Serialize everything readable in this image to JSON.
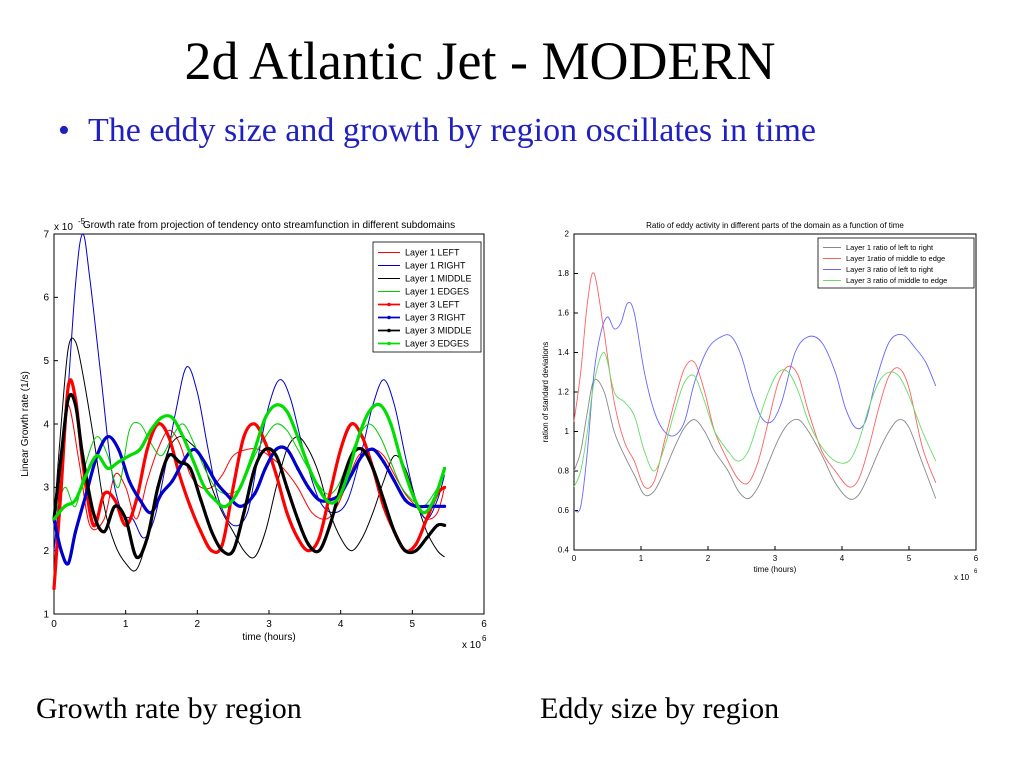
{
  "slide": {
    "title": "2d Atlantic Jet - MODERN",
    "bullet": "The eddy size and growth by region oscillates in time",
    "caption_left": "Growth rate by region",
    "caption_right": "Eddy size by region"
  },
  "chart_data": [
    {
      "type": "line",
      "title": "Growth rate from projection of tendency onto streamfunction in different subdomains",
      "xlabel": "time (hours)",
      "ylabel": "Linear Growth rate (1/s)",
      "x_multiplier": "x 10^6",
      "y_multiplier": "x 10^-5",
      "xlim": [
        0,
        6
      ],
      "ylim": [
        1,
        7
      ],
      "xticks": [
        0,
        1,
        2,
        3,
        4,
        5,
        6
      ],
      "yticks": [
        1,
        2,
        3,
        4,
        5,
        6,
        7
      ],
      "legend_position": "top-right",
      "series": [
        {
          "name": "Layer 1 LEFT",
          "color": "#ff0000",
          "marker": false,
          "x": [
            0,
            0.1,
            0.2,
            0.35,
            0.5,
            0.7,
            0.85,
            1.0,
            1.15,
            1.3,
            1.45,
            1.6,
            1.75,
            1.9,
            2.05,
            2.2,
            2.35,
            2.5,
            2.7,
            2.85,
            3.0,
            3.2,
            3.4,
            3.6,
            3.8,
            3.95,
            4.1,
            4.25,
            4.45,
            4.6,
            4.75,
            4.9,
            5.05,
            5.2,
            5.35,
            5.45
          ],
          "y": [
            1.5,
            3.5,
            4.3,
            3.4,
            2.4,
            2.5,
            3.2,
            3.0,
            2.5,
            3.1,
            3.6,
            3.9,
            3.7,
            3.2,
            3.0,
            3.0,
            3.2,
            3.5,
            3.6,
            3.6,
            3.5,
            3.3,
            3.0,
            2.6,
            2.5,
            2.7,
            3.1,
            3.5,
            3.6,
            3.5,
            3.2,
            2.9,
            2.7,
            2.5,
            2.6,
            3.0
          ]
        },
        {
          "name": "Layer 1 RIGHT",
          "color": "#0000cc",
          "marker": false,
          "x": [
            0,
            0.15,
            0.3,
            0.4,
            0.5,
            0.65,
            0.8,
            0.95,
            1.1,
            1.25,
            1.4,
            1.55,
            1.7,
            1.85,
            2.0,
            2.15,
            2.3,
            2.5,
            2.7,
            2.85,
            3.0,
            3.15,
            3.3,
            3.5,
            3.7,
            3.9,
            4.1,
            4.3,
            4.45,
            4.6,
            4.75,
            4.9,
            5.05,
            5.2,
            5.35,
            5.45
          ],
          "y": [
            2.0,
            3.8,
            6.2,
            7.0,
            6.3,
            4.8,
            3.3,
            2.6,
            2.5,
            2.2,
            2.5,
            3.3,
            4.2,
            4.9,
            4.5,
            3.6,
            2.8,
            2.4,
            2.6,
            3.5,
            4.3,
            4.7,
            4.4,
            3.5,
            2.8,
            2.6,
            2.8,
            3.6,
            4.3,
            4.7,
            4.3,
            3.5,
            2.8,
            2.5,
            2.8,
            3.2
          ]
        },
        {
          "name": "Layer 1 MIDDLE",
          "color": "#000000",
          "marker": false,
          "x": [
            0,
            0.1,
            0.2,
            0.3,
            0.4,
            0.55,
            0.7,
            0.85,
            1.0,
            1.15,
            1.3,
            1.45,
            1.6,
            1.75,
            1.9,
            2.05,
            2.2,
            2.35,
            2.5,
            2.65,
            2.8,
            2.95,
            3.1,
            3.25,
            3.4,
            3.55,
            3.7,
            3.85,
            4.0,
            4.15,
            4.3,
            4.45,
            4.6,
            4.75,
            4.9,
            5.05,
            5.2,
            5.35,
            5.45
          ],
          "y": [
            2.5,
            4.0,
            5.2,
            5.3,
            4.8,
            3.8,
            2.7,
            2.1,
            1.8,
            1.7,
            2.2,
            3.0,
            3.6,
            3.8,
            3.7,
            3.5,
            3.0,
            2.6,
            2.3,
            2.0,
            1.9,
            2.3,
            3.0,
            3.6,
            3.8,
            3.6,
            3.2,
            2.6,
            2.2,
            2.0,
            2.2,
            2.6,
            3.1,
            3.5,
            3.3,
            2.8,
            2.3,
            2.0,
            1.9
          ]
        },
        {
          "name": "Layer 1 EDGES",
          "color": "#00cc00",
          "marker": false,
          "x": [
            0,
            0.15,
            0.3,
            0.45,
            0.6,
            0.75,
            0.9,
            1.05,
            1.2,
            1.35,
            1.5,
            1.65,
            1.8,
            1.95,
            2.1,
            2.25,
            2.4,
            2.6,
            2.8,
            2.95,
            3.1,
            3.25,
            3.4,
            3.6,
            3.8,
            3.95,
            4.1,
            4.25,
            4.4,
            4.55,
            4.7,
            4.85,
            5.0,
            5.15,
            5.3,
            5.45
          ],
          "y": [
            2.5,
            3.0,
            2.7,
            3.4,
            3.8,
            3.5,
            3.0,
            3.9,
            4.0,
            3.7,
            3.5,
            3.8,
            4.0,
            3.7,
            3.3,
            3.0,
            2.9,
            3.0,
            3.5,
            3.8,
            4.0,
            3.9,
            3.6,
            3.2,
            2.9,
            3.0,
            3.4,
            3.8,
            4.0,
            3.8,
            3.4,
            3.0,
            2.8,
            2.7,
            2.9,
            3.2
          ]
        },
        {
          "name": "Layer 3 LEFT",
          "color": "#ff0000",
          "marker": true,
          "x": [
            0,
            0.1,
            0.2,
            0.3,
            0.4,
            0.55,
            0.7,
            0.85,
            1.0,
            1.15,
            1.3,
            1.45,
            1.6,
            1.75,
            1.9,
            2.05,
            2.2,
            2.35,
            2.5,
            2.65,
            2.8,
            2.95,
            3.1,
            3.25,
            3.4,
            3.55,
            3.7,
            3.85,
            4.0,
            4.15,
            4.3,
            4.45,
            4.6,
            4.75,
            4.9,
            5.05,
            5.2,
            5.35,
            5.45
          ],
          "y": [
            1.4,
            3.0,
            4.6,
            4.4,
            3.4,
            2.4,
            2.9,
            2.8,
            2.4,
            2.8,
            3.6,
            4.0,
            3.8,
            3.2,
            2.7,
            2.3,
            2.0,
            2.1,
            3.0,
            3.8,
            4.0,
            3.7,
            3.2,
            2.6,
            2.2,
            2.0,
            2.2,
            2.9,
            3.6,
            4.0,
            3.8,
            3.3,
            2.7,
            2.3,
            2.0,
            2.1,
            2.5,
            2.9,
            3.0
          ]
        },
        {
          "name": "Layer 3 RIGHT",
          "color": "#0000cc",
          "marker": true,
          "x": [
            0,
            0.1,
            0.2,
            0.3,
            0.45,
            0.6,
            0.75,
            0.9,
            1.05,
            1.2,
            1.35,
            1.5,
            1.65,
            1.8,
            1.95,
            2.1,
            2.25,
            2.4,
            2.6,
            2.8,
            2.95,
            3.1,
            3.25,
            3.4,
            3.55,
            3.7,
            3.85,
            4.0,
            4.15,
            4.3,
            4.45,
            4.6,
            4.75,
            4.9,
            5.05,
            5.2,
            5.35,
            5.45
          ],
          "y": [
            2.5,
            2.0,
            1.8,
            2.3,
            2.9,
            3.5,
            3.8,
            3.6,
            3.1,
            2.8,
            2.6,
            2.9,
            3.1,
            3.4,
            3.6,
            3.4,
            3.1,
            2.9,
            2.7,
            2.9,
            3.3,
            3.6,
            3.6,
            3.3,
            3.0,
            2.8,
            2.8,
            2.9,
            3.2,
            3.5,
            3.6,
            3.4,
            3.1,
            2.8,
            2.7,
            2.7,
            2.7,
            2.7
          ]
        },
        {
          "name": "Layer 3 MIDDLE",
          "color": "#000000",
          "marker": true,
          "x": [
            0,
            0.1,
            0.2,
            0.3,
            0.4,
            0.55,
            0.7,
            0.85,
            1.0,
            1.15,
            1.3,
            1.45,
            1.6,
            1.75,
            1.9,
            2.05,
            2.2,
            2.35,
            2.5,
            2.65,
            2.8,
            2.95,
            3.1,
            3.25,
            3.4,
            3.55,
            3.7,
            3.85,
            4.0,
            4.15,
            4.3,
            4.45,
            4.6,
            4.75,
            4.9,
            5.05,
            5.2,
            5.35,
            5.45
          ],
          "y": [
            2.5,
            3.5,
            4.4,
            4.3,
            3.5,
            2.6,
            2.3,
            2.7,
            2.5,
            1.9,
            2.2,
            3.0,
            3.5,
            3.4,
            3.3,
            2.8,
            2.3,
            2.0,
            2.0,
            2.6,
            3.3,
            3.6,
            3.5,
            3.0,
            2.5,
            2.1,
            2.0,
            2.4,
            3.0,
            3.5,
            3.6,
            3.3,
            2.8,
            2.3,
            2.0,
            2.0,
            2.2,
            2.4,
            2.4
          ]
        },
        {
          "name": "Layer 3 EDGES",
          "color": "#00dd00",
          "marker": true,
          "x": [
            0,
            0.15,
            0.3,
            0.45,
            0.6,
            0.75,
            0.9,
            1.05,
            1.2,
            1.35,
            1.5,
            1.65,
            1.8,
            1.95,
            2.1,
            2.25,
            2.4,
            2.6,
            2.8,
            2.95,
            3.1,
            3.25,
            3.4,
            3.6,
            3.8,
            3.95,
            4.1,
            4.25,
            4.4,
            4.55,
            4.7,
            4.85,
            5.0,
            5.15,
            5.3,
            5.45
          ],
          "y": [
            2.5,
            2.7,
            2.8,
            3.2,
            3.5,
            3.3,
            3.4,
            3.5,
            3.6,
            3.9,
            4.1,
            4.1,
            3.8,
            3.4,
            3.0,
            2.8,
            2.7,
            3.0,
            3.6,
            4.1,
            4.3,
            4.2,
            3.8,
            3.2,
            2.8,
            2.8,
            3.2,
            3.8,
            4.2,
            4.3,
            4.0,
            3.4,
            2.9,
            2.6,
            2.8,
            3.3
          ]
        }
      ]
    },
    {
      "type": "line",
      "title": "Ratio of eddy activity in different parts of the domain as a function of time",
      "xlabel": "time (hours)",
      "ylabel": "ration of standard deviations",
      "x_multiplier": "x 10^6",
      "xlim": [
        0,
        6
      ],
      "ylim": [
        0.4,
        2
      ],
      "xticks": [
        0,
        1,
        2,
        3,
        4,
        5,
        6
      ],
      "yticks": [
        0.4,
        0.6,
        0.8,
        1,
        1.2,
        1.4,
        1.6,
        1.8,
        2
      ],
      "legend_position": "top-right",
      "series": [
        {
          "name": "Layer 1 ratio of left to right",
          "color": "#888888",
          "x": [
            0,
            0.1,
            0.2,
            0.3,
            0.45,
            0.6,
            0.75,
            0.9,
            1.05,
            1.2,
            1.35,
            1.5,
            1.65,
            1.8,
            1.95,
            2.1,
            2.3,
            2.45,
            2.6,
            2.75,
            2.9,
            3.05,
            3.2,
            3.35,
            3.5,
            3.7,
            3.9,
            4.1,
            4.25,
            4.4,
            4.55,
            4.7,
            4.85,
            5.0,
            5.2,
            5.4
          ],
          "y": [
            0.8,
            0.9,
            1.1,
            1.26,
            1.2,
            1.0,
            0.88,
            0.78,
            0.68,
            0.7,
            0.8,
            0.92,
            1.02,
            1.06,
            1.0,
            0.9,
            0.8,
            0.7,
            0.66,
            0.72,
            0.84,
            0.96,
            1.04,
            1.06,
            1.0,
            0.88,
            0.74,
            0.66,
            0.68,
            0.78,
            0.9,
            1.0,
            1.06,
            1.02,
            0.84,
            0.66
          ]
        },
        {
          "name": "Layer 1ratio of middle to edge",
          "color": "#ff6060",
          "x": [
            0,
            0.1,
            0.2,
            0.3,
            0.45,
            0.6,
            0.75,
            0.9,
            1.05,
            1.2,
            1.35,
            1.5,
            1.65,
            1.8,
            1.95,
            2.1,
            2.3,
            2.45,
            2.6,
            2.75,
            2.9,
            3.05,
            3.2,
            3.35,
            3.5,
            3.7,
            3.9,
            4.1,
            4.25,
            4.4,
            4.55,
            4.7,
            4.85,
            5.0,
            5.2,
            5.4
          ],
          "y": [
            1.05,
            1.3,
            1.65,
            1.8,
            1.5,
            1.15,
            0.95,
            0.85,
            0.72,
            0.75,
            0.95,
            1.15,
            1.32,
            1.35,
            1.2,
            1.0,
            0.85,
            0.76,
            0.74,
            0.85,
            1.05,
            1.25,
            1.33,
            1.28,
            1.1,
            0.9,
            0.8,
            0.72,
            0.76,
            0.92,
            1.12,
            1.28,
            1.32,
            1.22,
            0.92,
            0.74
          ]
        },
        {
          "name": "Layer 3 ratio of left to right",
          "color": "#6666ff",
          "x": [
            0,
            0.1,
            0.2,
            0.3,
            0.4,
            0.5,
            0.6,
            0.7,
            0.8,
            0.9,
            1.05,
            1.2,
            1.35,
            1.5,
            1.65,
            1.8,
            2.0,
            2.2,
            2.35,
            2.5,
            2.65,
            2.8,
            2.95,
            3.1,
            3.3,
            3.5,
            3.7,
            3.9,
            4.05,
            4.2,
            4.35,
            4.5,
            4.7,
            4.9,
            5.1,
            5.25,
            5.4
          ],
          "y": [
            0.6,
            0.62,
            0.9,
            1.3,
            1.5,
            1.58,
            1.52,
            1.55,
            1.65,
            1.6,
            1.3,
            1.1,
            1.0,
            0.98,
            1.05,
            1.25,
            1.42,
            1.48,
            1.48,
            1.38,
            1.2,
            1.07,
            1.05,
            1.15,
            1.4,
            1.48,
            1.45,
            1.3,
            1.12,
            1.02,
            1.05,
            1.25,
            1.45,
            1.49,
            1.42,
            1.35,
            1.23
          ]
        },
        {
          "name": "Layer 3 ratio of middle to edge",
          "color": "#66dd66",
          "x": [
            0,
            0.1,
            0.2,
            0.3,
            0.45,
            0.6,
            0.75,
            0.9,
            1.05,
            1.2,
            1.35,
            1.5,
            1.65,
            1.8,
            1.95,
            2.1,
            2.3,
            2.45,
            2.6,
            2.75,
            2.9,
            3.05,
            3.2,
            3.35,
            3.5,
            3.7,
            3.9,
            4.1,
            4.25,
            4.4,
            4.55,
            4.7,
            4.85,
            5.0,
            5.2,
            5.4
          ],
          "y": [
            0.72,
            0.8,
            1.0,
            1.25,
            1.4,
            1.2,
            1.15,
            1.08,
            0.9,
            0.8,
            0.92,
            1.1,
            1.25,
            1.28,
            1.15,
            1.0,
            0.9,
            0.85,
            0.9,
            1.05,
            1.2,
            1.3,
            1.3,
            1.2,
            1.05,
            0.92,
            0.85,
            0.85,
            0.95,
            1.12,
            1.25,
            1.3,
            1.28,
            1.18,
            1.0,
            0.85
          ]
        }
      ]
    }
  ]
}
